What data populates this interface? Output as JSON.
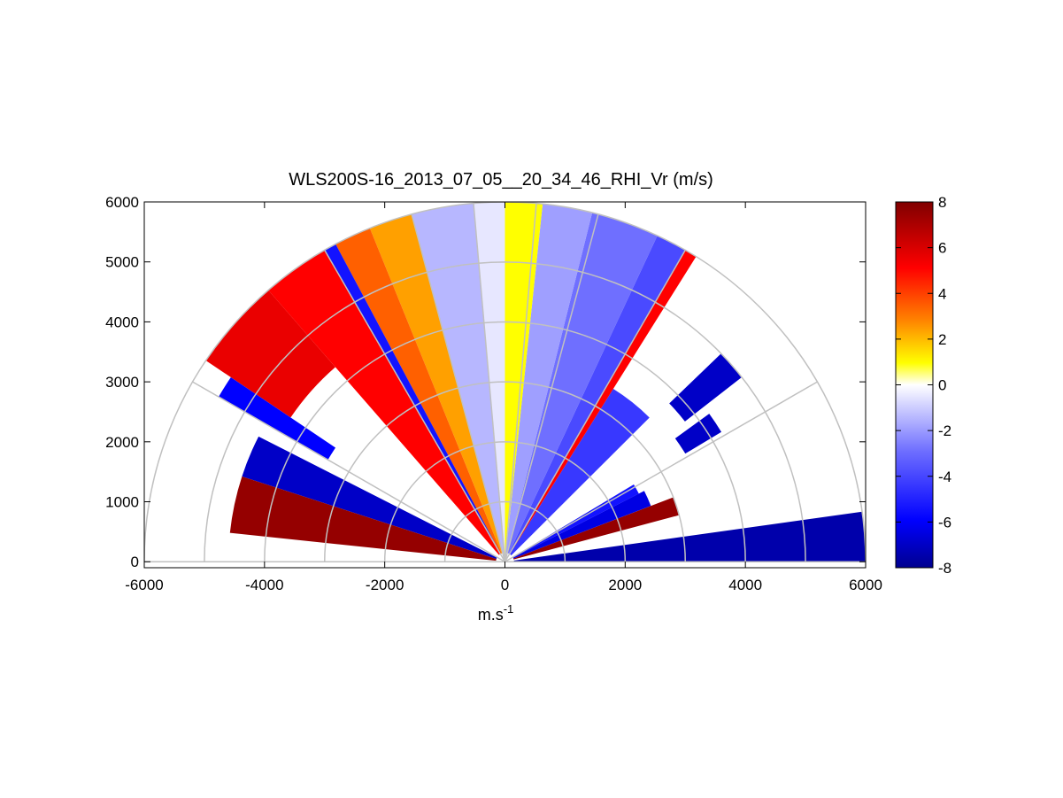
{
  "chart_data": {
    "type": "heatmap",
    "subtype": "polar-rhi-scan",
    "title": "WLS200S-16_2013_07_05__20_34_46_RHI_Vr (m/s)",
    "xlabel_base": "m.s",
    "xlabel_exp": "-1",
    "ylabel": "",
    "xlim": [
      -6000,
      6000
    ],
    "ylim": [
      -100,
      6000
    ],
    "x_ticks": [
      "-6000",
      "-4000",
      "-2000",
      "0",
      "2000",
      "4000",
      "6000"
    ],
    "y_ticks": [
      "0",
      "1000",
      "2000",
      "3000",
      "4000",
      "5000",
      "6000"
    ],
    "range_rings": [
      1000,
      2000,
      3000,
      4000,
      5000,
      6000
    ],
    "grid_angles_deg": [
      30,
      60,
      75,
      85,
      95,
      105,
      120,
      150
    ],
    "colorbar": {
      "min": -8,
      "max": 8,
      "ticks": [
        "8",
        "6",
        "4",
        "2",
        "0",
        "-2",
        "-4",
        "-6",
        "-8"
      ],
      "colors": [
        "#00008f",
        "#0000ff",
        "#6f6fff",
        "#ffffff",
        "#ffff00",
        "#ff8000",
        "#ff0000",
        "#800000"
      ]
    },
    "sectors": [
      {
        "theta_start": 0,
        "theta_end": 8,
        "r_min": 150,
        "r_max": 6000,
        "vr": -7.5
      },
      {
        "theta_start": 15,
        "theta_end": 21,
        "r_min": 150,
        "r_max": 3000,
        "vr": 7.5
      },
      {
        "theta_start": 21,
        "theta_end": 27,
        "r_min": 150,
        "r_max": 2600,
        "vr": -6.5
      },
      {
        "theta_start": 27,
        "theta_end": 31,
        "r_min": 150,
        "r_max": 2500,
        "vr": -5.5
      },
      {
        "theta_start": 31,
        "theta_end": 36,
        "r_min": 3500,
        "r_max": 4200,
        "vr": -7.0
      },
      {
        "theta_start": 38,
        "theta_end": 44,
        "r_min": 3800,
        "r_max": 5000,
        "vr": -7.0
      },
      {
        "theta_start": 45,
        "theta_end": 58,
        "r_min": 150,
        "r_max": 3400,
        "vr": -4.5
      },
      {
        "theta_start": 58,
        "theta_end": 60,
        "r_min": 150,
        "r_max": 6000,
        "vr": 5.0
      },
      {
        "theta_start": 60,
        "theta_end": 65,
        "r_min": 150,
        "r_max": 6000,
        "vr": -4.0
      },
      {
        "theta_start": 65,
        "theta_end": 76,
        "r_min": 150,
        "r_max": 6000,
        "vr": -3.0
      },
      {
        "theta_start": 76,
        "theta_end": 84,
        "r_min": 150,
        "r_max": 6000,
        "vr": -2.0
      },
      {
        "theta_start": 84,
        "theta_end": 90,
        "r_min": 150,
        "r_max": 6000,
        "vr": 1.0
      },
      {
        "theta_start": 90,
        "theta_end": 95,
        "r_min": 150,
        "r_max": 6000,
        "vr": -0.5
      },
      {
        "theta_start": 95,
        "theta_end": 105,
        "r_min": 150,
        "r_max": 6000,
        "vr": -1.5
      },
      {
        "theta_start": 105,
        "theta_end": 112,
        "r_min": 150,
        "r_max": 6000,
        "vr": 2.5
      },
      {
        "theta_start": 112,
        "theta_end": 118,
        "r_min": 150,
        "r_max": 6000,
        "vr": 3.5
      },
      {
        "theta_start": 118,
        "theta_end": 120,
        "r_min": 150,
        "r_max": 6000,
        "vr": -5.5
      },
      {
        "theta_start": 120,
        "theta_end": 131,
        "r_min": 150,
        "r_max": 6000,
        "vr": 5.0
      },
      {
        "theta_start": 131,
        "theta_end": 146,
        "r_min": 4300,
        "r_max": 6000,
        "vr": 5.5
      },
      {
        "theta_start": 146,
        "theta_end": 150,
        "r_min": 3400,
        "r_max": 5500,
        "vr": -6.0
      },
      {
        "theta_start": 153,
        "theta_end": 162,
        "r_min": 150,
        "r_max": 4600,
        "vr": -7.0
      },
      {
        "theta_start": 162,
        "theta_end": 174,
        "r_min": 150,
        "r_max": 4600,
        "vr": 7.5
      }
    ]
  }
}
